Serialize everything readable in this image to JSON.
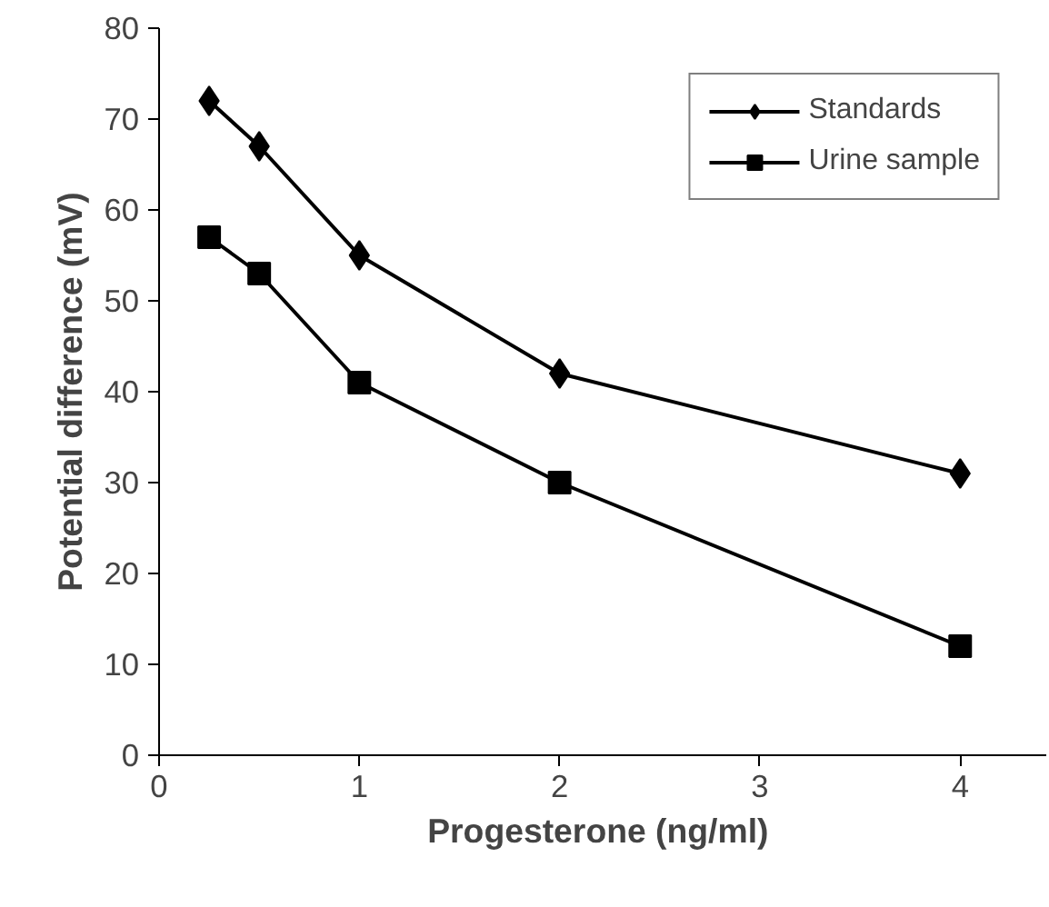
{
  "chart_data": {
    "type": "line",
    "xlabel": "Progesterone  (ng/ml)",
    "ylabel": "Potential difference (mV)",
    "x": [
      0.25,
      0.5,
      1,
      2,
      4
    ],
    "series": [
      {
        "name": "Standards",
        "color": "#000000",
        "marker": "diamond",
        "values": [
          72,
          67,
          55,
          42,
          31
        ]
      },
      {
        "name": "Urine sample",
        "color": "#000000",
        "marker": "square",
        "values": [
          57,
          53,
          41,
          30,
          12
        ]
      }
    ],
    "xlim": [
      0,
      4.43
    ],
    "xticks": [
      0,
      1,
      2,
      3,
      4
    ],
    "ylim": [
      0,
      80
    ],
    "yticks": [
      0,
      10,
      20,
      30,
      40,
      50,
      60,
      70,
      80
    ],
    "grid": false,
    "legend": "top right",
    "line_style": "solid"
  }
}
